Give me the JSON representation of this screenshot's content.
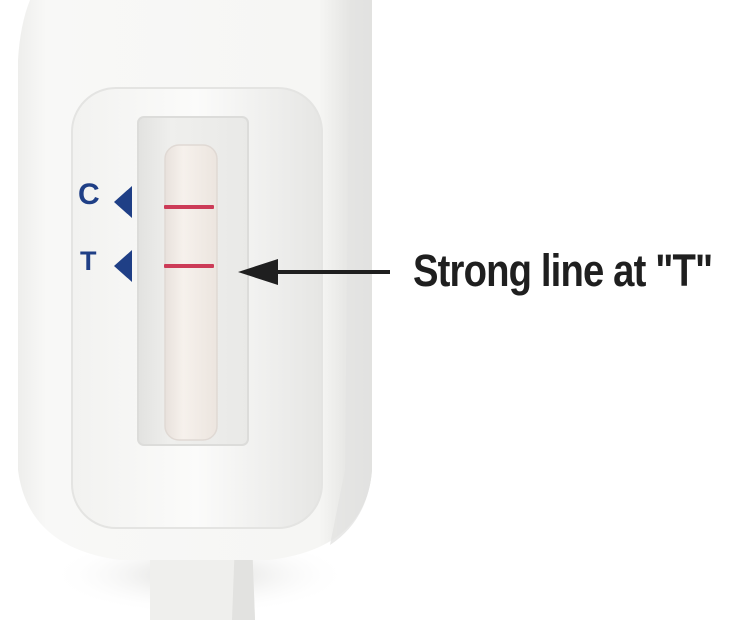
{
  "photo": {
    "subject": "pregnancy test cassette",
    "markers": {
      "control": "C",
      "test": "T"
    },
    "annotation": "Strong line at \"T\"",
    "colors": {
      "housing": "#f6f6f4",
      "window_frame": "#ececea",
      "strip": "#f3ede8",
      "result_lines": "#cc3b57",
      "marker": "#1f3f86",
      "annotation_text": "#1f1f1f"
    }
  }
}
